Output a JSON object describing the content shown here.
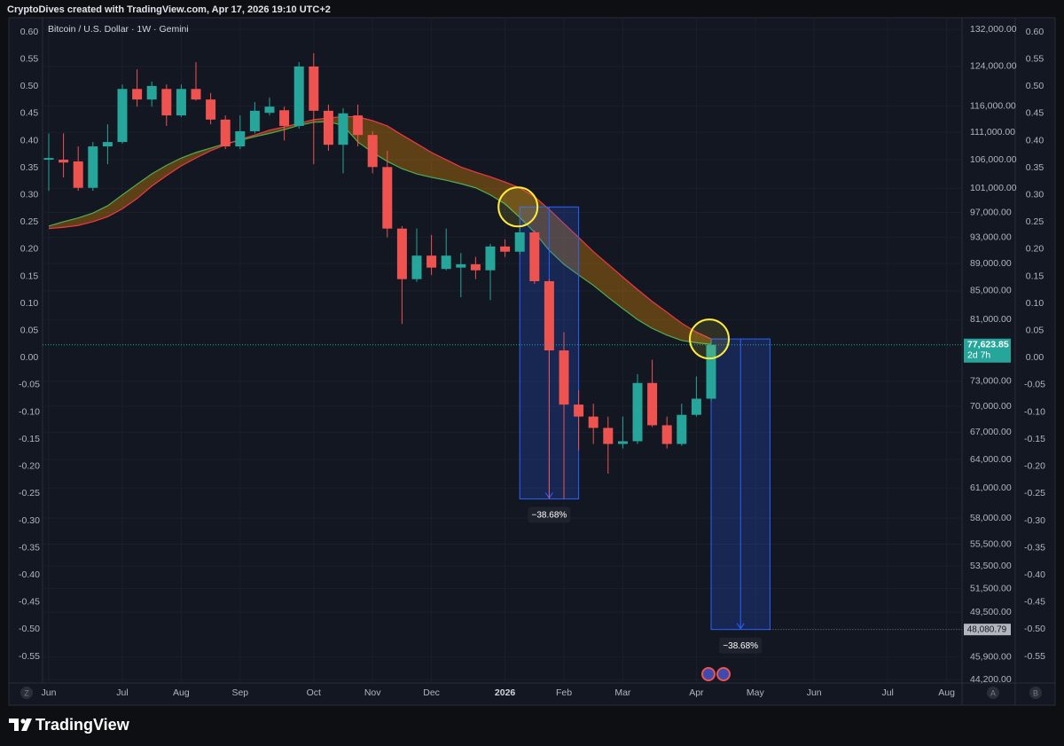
{
  "header": "CryptoDives created with TradingView.com, Apr 17, 2026 19:10 UTC+2",
  "footer": "TradingView",
  "controls": [
    "Z",
    "A",
    "B"
  ],
  "chart_data": {
    "type": "candlestick",
    "title": "Bitcoin / U.S. Dollar · 1W · Gemini",
    "categories": [
      "Jun",
      null,
      null,
      null,
      null,
      "Jul",
      null,
      null,
      null,
      "Aug",
      null,
      null,
      null,
      "Sep",
      null,
      null,
      null,
      null,
      "Oct",
      null,
      null,
      null,
      "Nov",
      null,
      null,
      null,
      "Dec",
      null,
      null,
      null,
      null,
      "2026",
      null,
      null,
      null,
      "Feb",
      null,
      null,
      null,
      "Mar",
      null,
      null,
      null,
      null,
      "Apr",
      null,
      null,
      null,
      "May",
      null,
      null,
      null,
      "Jun",
      null,
      null,
      null,
      null,
      "Jul",
      null,
      null,
      null,
      "Aug",
      null
    ],
    "open": [
      106000,
      106000,
      105700,
      101100,
      108400,
      109200,
      119400,
      117300,
      119400,
      114200,
      119400,
      117300,
      113400,
      108400,
      111200,
      114700,
      115200,
      112200,
      124000,
      115100,
      108700,
      114200,
      110500,
      104700,
      94400,
      86700,
      90200,
      88200,
      88400,
      88900,
      88000,
      91600,
      90800,
      93800,
      86400,
      76900,
      70200,
      68800,
      67500,
      65700,
      66000,
      72800,
      67800,
      65700,
      69000,
      70900,
      null,
      null,
      null,
      null,
      null,
      null,
      null,
      null,
      null,
      null,
      null,
      null,
      null,
      null,
      null,
      null,
      null
    ],
    "high": [
      110800,
      110800,
      108400,
      109200,
      112500,
      120300,
      123400,
      120900,
      120300,
      120300,
      124900,
      118600,
      114200,
      114200,
      116800,
      117700,
      115900,
      124900,
      126800,
      116300,
      115600,
      116300,
      111200,
      107600,
      94800,
      94400,
      93400,
      94400,
      90600,
      90000,
      92000,
      92700,
      94800,
      94100,
      86700,
      79300,
      71900,
      70300,
      68800,
      68800,
      73900,
      75700,
      68800,
      70300,
      73600,
      78300,
      null,
      null,
      null,
      null,
      null,
      null,
      null,
      null,
      null,
      null,
      null,
      null,
      null,
      null,
      null,
      null,
      null
    ],
    "low": [
      100600,
      102900,
      100600,
      100600,
      105200,
      108900,
      115900,
      115900,
      112200,
      113900,
      117100,
      112500,
      107900,
      107900,
      110800,
      114200,
      109500,
      111700,
      105200,
      107600,
      103600,
      108400,
      103600,
      93000,
      80400,
      86300,
      87300,
      88000,
      84100,
      86700,
      83700,
      90000,
      90400,
      86000,
      59900,
      59900,
      65000,
      65700,
      62500,
      65200,
      65700,
      67600,
      65200,
      65500,
      68800,
      70600,
      null,
      null,
      null,
      null,
      null,
      null,
      null,
      null,
      null,
      null,
      null,
      null,
      null,
      null,
      null,
      null,
      null
    ],
    "close": [
      106300,
      105500,
      101100,
      108400,
      109200,
      119400,
      117300,
      120000,
      114200,
      119400,
      117300,
      113400,
      108400,
      111200,
      115100,
      115900,
      112200,
      124000,
      115100,
      108700,
      114600,
      110500,
      104700,
      94400,
      86700,
      90200,
      88400,
      90200,
      88900,
      88000,
      91600,
      90800,
      93800,
      86400,
      76900,
      70200,
      68800,
      67500,
      65700,
      66000,
      72800,
      67800,
      65700,
      69000,
      70900,
      77623.85,
      null,
      null,
      null,
      null,
      null,
      null,
      null,
      null,
      null,
      null,
      null,
      null,
      null,
      null,
      null,
      null,
      null
    ],
    "up_color": "#26a69a",
    "down_color": "#ef5350",
    "lines": [
      {
        "color": "#4caf50",
        "values": [
          94800,
          95500,
          96100,
          96900,
          98100,
          99900,
          101700,
          103500,
          105000,
          106300,
          107300,
          108100,
          108900,
          109500,
          110200,
          110800,
          111500,
          112300,
          112900,
          113000,
          112300,
          109200,
          107300,
          105700,
          104400,
          103500,
          102900,
          102400,
          101800,
          101100,
          99900,
          98400,
          96200,
          93800,
          91000,
          88900,
          87300,
          85800,
          84100,
          82500,
          81000,
          79800,
          78900,
          78200,
          77900,
          77700,
          null,
          null,
          null,
          null,
          null,
          null,
          null,
          null,
          null,
          null,
          null,
          null,
          null,
          null,
          null,
          null,
          null
        ]
      },
      {
        "color": "#f23645",
        "values": [
          94400,
          94600,
          94900,
          95500,
          96300,
          97600,
          99300,
          101400,
          103200,
          104900,
          106300,
          107600,
          108700,
          109700,
          110500,
          111400,
          112000,
          112700,
          113400,
          113700,
          114000,
          113900,
          113200,
          112200,
          110500,
          108900,
          107300,
          106000,
          104700,
          103800,
          103000,
          102100,
          101100,
          99600,
          97500,
          95200,
          93000,
          90800,
          88900,
          87000,
          85200,
          83500,
          82000,
          80500,
          79300,
          78400,
          null,
          null,
          null,
          null,
          null,
          null,
          null,
          null,
          null,
          null,
          null,
          null,
          null,
          null,
          null,
          null,
          null
        ]
      }
    ],
    "band_color": "rgba(255,152,0,0.32)",
    "log_y": true,
    "ylim": [
      43940,
      134200
    ],
    "yticks": [
      {
        "value": 132000,
        "label": "132,000.00"
      },
      {
        "value": 124000,
        "label": "124,000.00"
      },
      {
        "value": 116000,
        "label": "116,000.00"
      },
      {
        "value": 111000,
        "label": "111,000.00"
      },
      {
        "value": 106000,
        "label": "106,000.00"
      },
      {
        "value": 101000,
        "label": "101,000.00"
      },
      {
        "value": 97000,
        "label": "97,000.00"
      },
      {
        "value": 93000,
        "label": "93,000.00"
      },
      {
        "value": 89000,
        "label": "89,000.00"
      },
      {
        "value": 85000,
        "label": "85,000.00"
      },
      {
        "value": 81000,
        "label": "81,000.00"
      },
      {
        "value": 73000,
        "label": "73,000.00"
      },
      {
        "value": 70000,
        "label": "70,000.00"
      },
      {
        "value": 67000,
        "label": "67,000.00"
      },
      {
        "value": 64000,
        "label": "64,000.00"
      },
      {
        "value": 61000,
        "label": "61,000.00"
      },
      {
        "value": 58000,
        "label": "58,000.00"
      },
      {
        "value": 55500,
        "label": "55,500.00"
      },
      {
        "value": 53500,
        "label": "53,500.00"
      },
      {
        "value": 51500,
        "label": "51,500.00"
      },
      {
        "value": 49500,
        "label": "49,500.00"
      },
      {
        "value": 45900,
        "label": "45,900.00"
      },
      {
        "value": 44200,
        "label": "44,200.00"
      }
    ],
    "y2lim": [
      -0.599,
      0.623
    ],
    "y2ticks": [
      {
        "value": 0.6,
        "label": "0.60"
      },
      {
        "value": 0.55,
        "label": "0.55"
      },
      {
        "value": 0.5,
        "label": "0.50"
      },
      {
        "value": 0.45,
        "label": "0.45"
      },
      {
        "value": 0.4,
        "label": "0.40"
      },
      {
        "value": 0.35,
        "label": "0.35"
      },
      {
        "value": 0.3,
        "label": "0.30"
      },
      {
        "value": 0.25,
        "label": "0.25"
      },
      {
        "value": 0.2,
        "label": "0.20"
      },
      {
        "value": 0.15,
        "label": "0.15"
      },
      {
        "value": 0.1,
        "label": "0.10"
      },
      {
        "value": 0.05,
        "label": "0.05"
      },
      {
        "value": 0,
        "label": "0.00"
      },
      {
        "value": -0.05,
        "label": "-0.05"
      },
      {
        "value": -0.1,
        "label": "-0.10"
      },
      {
        "value": -0.15,
        "label": "-0.15"
      },
      {
        "value": -0.2,
        "label": "-0.20"
      },
      {
        "value": -0.25,
        "label": "-0.25"
      },
      {
        "value": -0.3,
        "label": "-0.30"
      },
      {
        "value": -0.35,
        "label": "-0.35"
      },
      {
        "value": -0.4,
        "label": "-0.40"
      },
      {
        "value": -0.45,
        "label": "-0.45"
      },
      {
        "value": -0.5,
        "label": "-0.50"
      },
      {
        "value": -0.55,
        "label": "-0.55"
      }
    ],
    "last_price": {
      "value": 77623.85,
      "label": "77,623.85",
      "countdown": "2d 7h",
      "color": "#26a69a"
    },
    "measures": [
      {
        "label": "−38.68%",
        "start": 32,
        "end": 36,
        "top": 97900,
        "bottom": 59900
      },
      {
        "label": "−38.68%",
        "start": 45,
        "end": 49,
        "top": 78400,
        "bottom": 48080.79,
        "bottom_label": "48,080.79"
      }
    ],
    "grid": true
  }
}
